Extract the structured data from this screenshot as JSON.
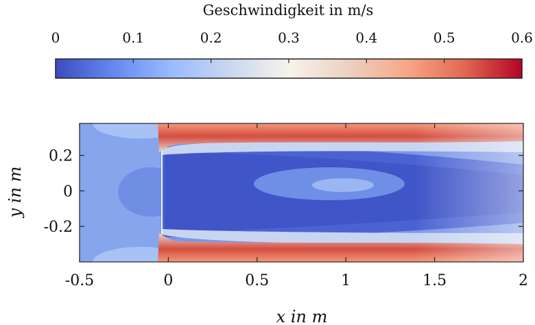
{
  "chart_data": {
    "type": "heatmap",
    "subtype": "filled-contour",
    "colorbar": {
      "title": "Geschwindigkeit in m/s",
      "range": [
        0,
        0.6
      ],
      "ticks": [
        0,
        0.1,
        0.2,
        0.3,
        0.4,
        0.5,
        0.6
      ],
      "tick_labels": [
        "0",
        "0.1",
        "0.2",
        "0.3",
        "0.4",
        "0.5",
        "0.6"
      ],
      "orientation": "horizontal",
      "position": "top",
      "colormap": [
        "#3b4cc0",
        "#6788ee",
        "#9abbff",
        "#c9d7f0",
        "#f7f3ec",
        "#edd1c2",
        "#f7a889",
        "#e26952",
        "#b40426"
      ]
    },
    "xlabel": "x in m",
    "ylabel": "y in m",
    "xlim": [
      -0.5,
      2
    ],
    "ylim": [
      -0.4,
      0.38
    ],
    "x_ticks": [
      -0.5,
      0,
      0.5,
      1,
      1.5,
      2
    ],
    "x_tick_labels": [
      "-0.5",
      "0",
      "0.5",
      "1",
      "1.5",
      "2"
    ],
    "y_ticks": [
      -0.2,
      0,
      0.2
    ],
    "y_tick_labels": [
      "-0.2",
      "0",
      "0.2"
    ],
    "field_regions": [
      {
        "name": "inlet-region",
        "x_range": [
          -0.5,
          -0.02
        ],
        "speed": 0.13
      },
      {
        "name": "upper-jet",
        "x_range": [
          -0.03,
          2.0
        ],
        "y_center": 0.32,
        "speed_peak": 0.58
      },
      {
        "name": "lower-jet",
        "x_range": [
          -0.03,
          2.0
        ],
        "y_center": -0.33,
        "speed_peak": 0.58
      },
      {
        "name": "wake-core",
        "x_range": [
          0.0,
          2.0
        ],
        "y_center": 0.0,
        "speed": 0.05
      },
      {
        "name": "recirculation-zone",
        "x_center": 1.05,
        "y_center": 0.03,
        "speed": 0.15
      }
    ]
  }
}
